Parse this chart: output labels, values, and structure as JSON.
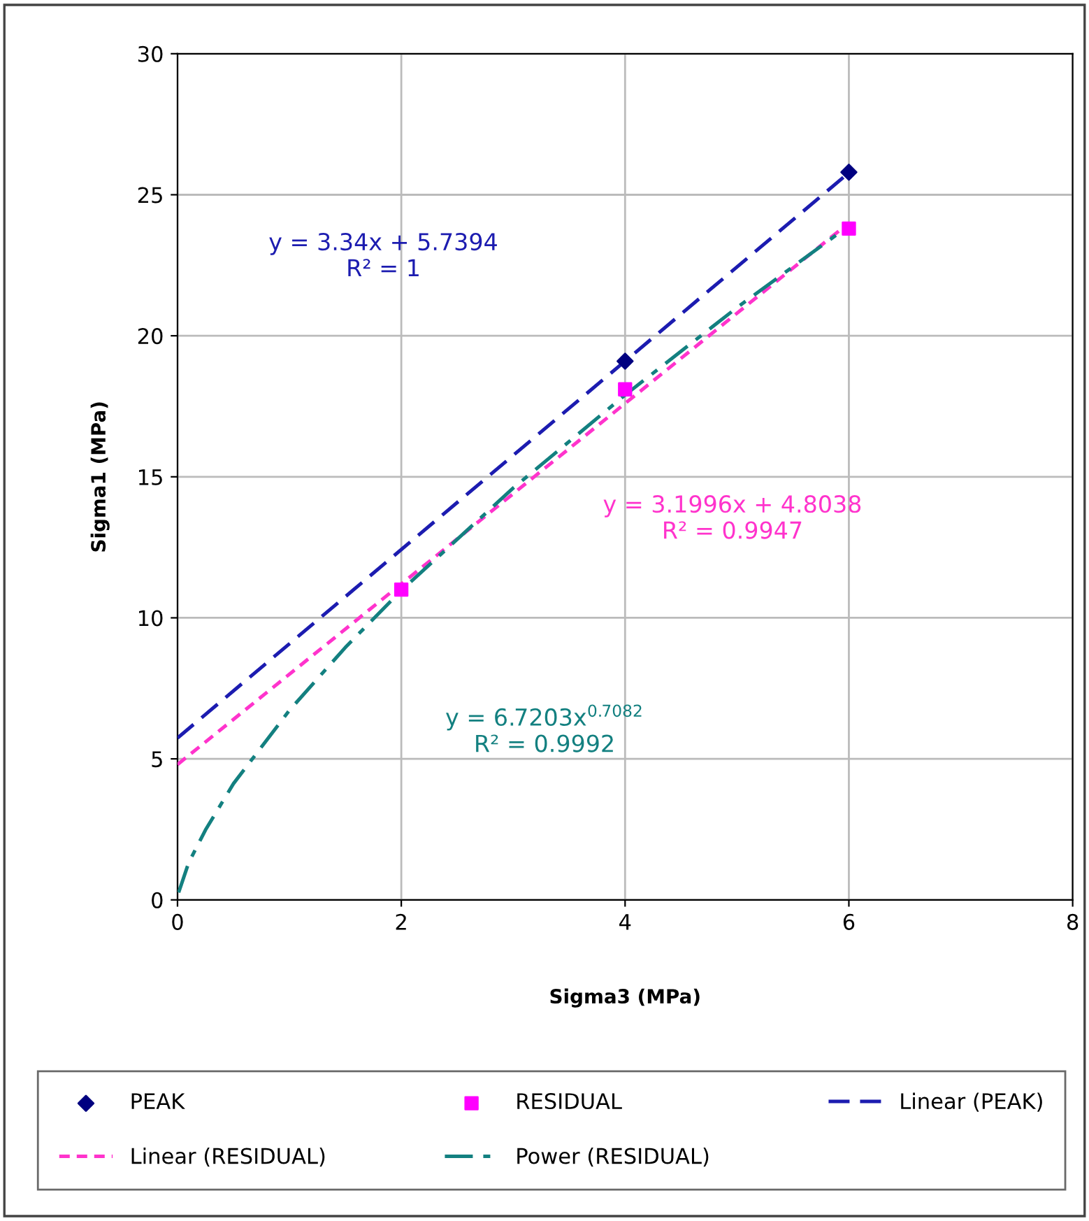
{
  "chart_data": {
    "type": "scatter",
    "xlabel": "Sigma3 (MPa)",
    "ylabel": "Sigma1 (MPa)",
    "xlim": [
      0,
      8
    ],
    "xticks": [
      0,
      2,
      4,
      6,
      8
    ],
    "ylim": [
      0,
      30
    ],
    "yticks": [
      0,
      5,
      10,
      15,
      20,
      25,
      30
    ],
    "grid": true,
    "legend": "bottom",
    "series": [
      {
        "name": "PEAK",
        "marker": "diamond",
        "color": "#000080",
        "x": [
          4,
          6
        ],
        "values": [
          19.1,
          25.8
        ]
      },
      {
        "name": "RESIDUAL",
        "marker": "square",
        "color": "#ff00ff",
        "x": [
          2,
          4,
          6
        ],
        "values": [
          11.0,
          18.1,
          23.8
        ]
      },
      {
        "name": "Linear (PEAK)",
        "type": "line",
        "line_style": "dashed",
        "color": "#1c1cb0",
        "x": [
          0,
          6
        ],
        "values": [
          5.74,
          25.78
        ]
      },
      {
        "name": "Linear (RESIDUAL)",
        "type": "line",
        "line_style": "dotted",
        "color": "#ff33cc",
        "x": [
          0,
          6
        ],
        "values": [
          4.8,
          24.0
        ]
      },
      {
        "name": "Power (RESIDUAL)",
        "type": "line",
        "line_style": "dashdot",
        "color": "#138080",
        "x": [
          0.01,
          0.1,
          0.25,
          0.5,
          1,
          1.5,
          2,
          3,
          4,
          5,
          6
        ],
        "values": [
          0.26,
          1.32,
          2.48,
          4.12,
          6.72,
          8.95,
          10.97,
          14.6,
          17.9,
          21.0,
          23.9
        ]
      }
    ],
    "annotations": [
      "y = 3.34x + 5.7394\nR² = 1",
      "y = 3.1996x + 4.8038\nR² = 0.9947",
      "y = 6.7203x$^{0.7082}$\nR² = 0.9992"
    ]
  }
}
